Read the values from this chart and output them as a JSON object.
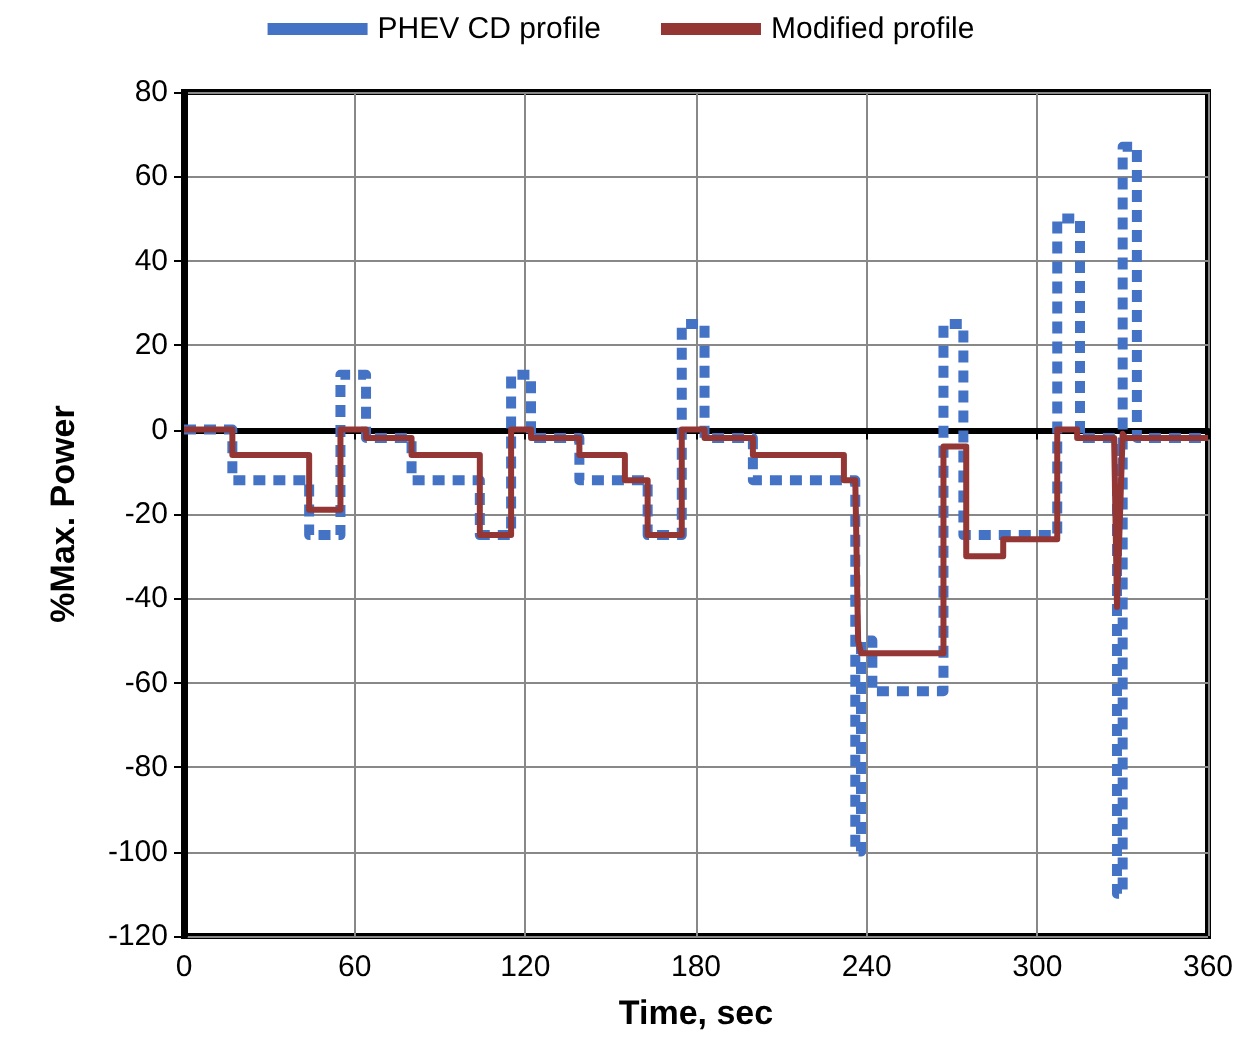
{
  "chart_data": {
    "type": "line",
    "xlabel": "Time, sec",
    "ylabel": "%Max. Power",
    "xlim": [
      0,
      360
    ],
    "xticks": [
      0,
      60,
      120,
      180,
      240,
      300,
      360
    ],
    "ylim": [
      -120,
      80
    ],
    "yticks": [
      -120,
      -100,
      -80,
      -60,
      -40,
      -20,
      0,
      20,
      40,
      60,
      80
    ],
    "grid": true,
    "legend": "top",
    "marker": "none",
    "series": [
      {
        "name": "PHEV CD profile",
        "color": "#4472c4",
        "line_style": "dashed",
        "x": [
          0,
          17,
          17,
          44,
          44,
          55,
          55,
          64,
          64,
          80,
          80,
          104,
          104,
          115,
          115,
          122,
          122,
          139,
          139,
          163,
          163,
          175,
          175,
          183,
          183,
          200,
          200,
          236,
          236,
          238,
          238,
          242,
          242,
          267,
          267,
          274,
          274,
          307,
          307,
          315,
          315,
          328,
          328,
          330,
          330,
          335,
          335,
          360
        ],
        "values": [
          0,
          0,
          -12,
          -12,
          -25,
          -25,
          13,
          13,
          -2,
          -2,
          -12,
          -12,
          -25,
          -25,
          13,
          13,
          -2,
          -2,
          -12,
          -12,
          -25,
          -25,
          25,
          25,
          -2,
          -2,
          -12,
          -12,
          -100,
          -100,
          -50,
          -50,
          -62,
          -62,
          25,
          25,
          -25,
          -25,
          50,
          50,
          -2,
          -2,
          -110,
          -110,
          67,
          67,
          -2,
          -2
        ]
      },
      {
        "name": "Modified profile",
        "color": "#943634",
        "line_style": "solid",
        "x": [
          0,
          17,
          17,
          44,
          44,
          55,
          55,
          64,
          64,
          80,
          80,
          104,
          104,
          115,
          115,
          122,
          122,
          139,
          139,
          155,
          155,
          163,
          163,
          175,
          175,
          183,
          183,
          200,
          200,
          232,
          232,
          236,
          237,
          238,
          267,
          267,
          275,
          275,
          288,
          288,
          307,
          307,
          314,
          314,
          327,
          328,
          330,
          331,
          360
        ],
        "values": [
          0,
          0,
          -6,
          -6,
          -19,
          -19,
          0,
          0,
          -2,
          -2,
          -6,
          -6,
          -25,
          -25,
          0,
          0,
          -2,
          -2,
          -6,
          -6,
          -12,
          -12,
          -25,
          -25,
          0,
          0,
          -2,
          -2,
          -6,
          -6,
          -12,
          -12,
          -50,
          -53,
          -53,
          -4,
          -4,
          -30,
          -30,
          -26,
          -26,
          0,
          0,
          -2,
          -2,
          -42,
          -1,
          -2,
          -2
        ]
      }
    ]
  }
}
